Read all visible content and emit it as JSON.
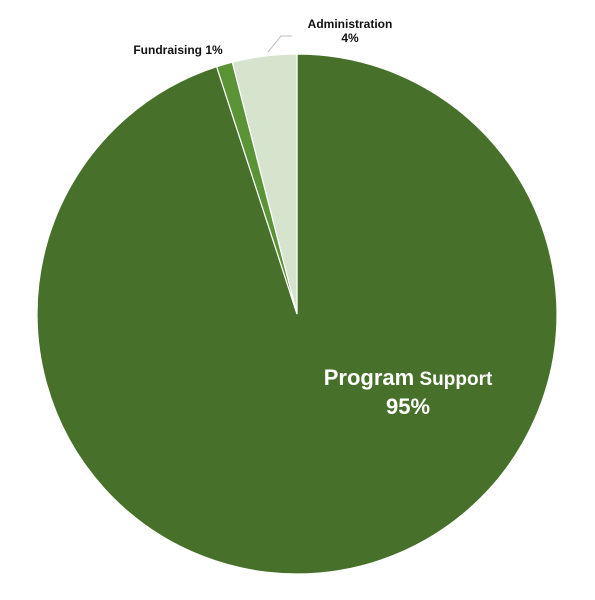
{
  "chart_data": {
    "type": "pie",
    "title": "",
    "slices": [
      {
        "name": "Program Support",
        "value": 95,
        "color": "#47702a",
        "label_lines": [
          [
            {
              "text": "Program",
              "size": "large"
            },
            {
              "text": " Support",
              "size": "medium"
            }
          ],
          [
            {
              "text": "95%",
              "size": "large"
            }
          ]
        ]
      },
      {
        "name": "Fundraising",
        "value": 1,
        "color": "#5a9436",
        "label_lines": [
          [
            {
              "text": "Fundraising 1%",
              "size": "small"
            }
          ]
        ]
      },
      {
        "name": "Administration",
        "value": 4,
        "color": "#d6e3cd",
        "label_lines": [
          [
            {
              "text": "Administration",
              "size": "small"
            }
          ],
          [
            {
              "text": "4%",
              "size": "small"
            }
          ]
        ]
      }
    ],
    "start_angle_deg": 0,
    "direction": "clockwise",
    "legend": "none",
    "slice_border_color": "#ffffff"
  }
}
